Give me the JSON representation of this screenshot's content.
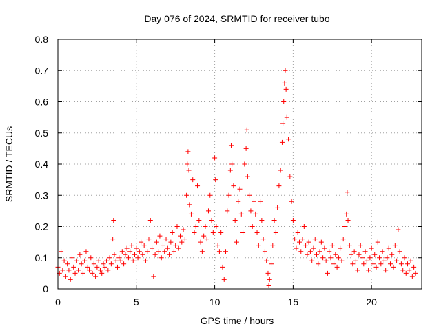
{
  "chart_data": {
    "type": "scatter",
    "title": "Day 076 of 2024, SRMTID for receiver tubo",
    "xlabel": "GPS time / hours",
    "ylabel": "SRMTID / TECUs",
    "xlim": [
      0,
      23.2
    ],
    "ylim": [
      0,
      0.8
    ],
    "xticks": [
      0,
      5,
      10,
      15,
      20
    ],
    "yticks": [
      0,
      0.1,
      0.2,
      0.3,
      0.4,
      0.5,
      0.6,
      0.7,
      0.8
    ],
    "xtick_labels": [
      "0",
      "5",
      "10",
      "15",
      "20"
    ],
    "ytick_labels": [
      "0",
      "0.1",
      "0.2",
      "0.3",
      "0.4",
      "0.5",
      "0.6",
      "0.7",
      "0.8"
    ],
    "grid": true,
    "marker": "plus",
    "color": "#ff0000",
    "series": [
      {
        "name": "SRMTID",
        "points": [
          [
            0.0,
            0.07
          ],
          [
            0.1,
            0.05
          ],
          [
            0.2,
            0.12
          ],
          [
            0.3,
            0.06
          ],
          [
            0.4,
            0.09
          ],
          [
            0.5,
            0.04
          ],
          [
            0.6,
            0.08
          ],
          [
            0.7,
            0.06
          ],
          [
            0.8,
            0.03
          ],
          [
            0.9,
            0.1
          ],
          [
            1.0,
            0.07
          ],
          [
            1.1,
            0.05
          ],
          [
            1.2,
            0.09
          ],
          [
            1.3,
            0.06
          ],
          [
            1.4,
            0.11
          ],
          [
            1.5,
            0.08
          ],
          [
            1.6,
            0.05
          ],
          [
            1.7,
            0.09
          ],
          [
            1.8,
            0.12
          ],
          [
            1.9,
            0.07
          ],
          [
            2.0,
            0.06
          ],
          [
            2.1,
            0.1
          ],
          [
            2.2,
            0.05
          ],
          [
            2.3,
            0.08
          ],
          [
            2.4,
            0.04
          ],
          [
            2.5,
            0.07
          ],
          [
            2.6,
            0.09
          ],
          [
            2.7,
            0.06
          ],
          [
            2.8,
            0.05
          ],
          [
            2.9,
            0.08
          ],
          [
            3.0,
            0.07
          ],
          [
            3.1,
            0.09
          ],
          [
            3.2,
            0.06
          ],
          [
            3.3,
            0.1
          ],
          [
            3.4,
            0.08
          ],
          [
            3.5,
            0.16
          ],
          [
            3.55,
            0.22
          ],
          [
            3.6,
            0.11
          ],
          [
            3.7,
            0.09
          ],
          [
            3.8,
            0.07
          ],
          [
            3.9,
            0.1
          ],
          [
            4.0,
            0.09
          ],
          [
            4.1,
            0.12
          ],
          [
            4.2,
            0.08
          ],
          [
            4.3,
            0.11
          ],
          [
            4.4,
            0.13
          ],
          [
            4.5,
            0.1
          ],
          [
            4.6,
            0.12
          ],
          [
            4.7,
            0.14
          ],
          [
            4.8,
            0.09
          ],
          [
            4.9,
            0.11
          ],
          [
            5.0,
            0.13
          ],
          [
            5.1,
            0.1
          ],
          [
            5.2,
            0.12
          ],
          [
            5.3,
            0.15
          ],
          [
            5.4,
            0.11
          ],
          [
            5.5,
            0.14
          ],
          [
            5.6,
            0.09
          ],
          [
            5.7,
            0.12
          ],
          [
            5.8,
            0.16
          ],
          [
            5.9,
            0.22
          ],
          [
            6.0,
            0.13
          ],
          [
            6.1,
            0.04
          ],
          [
            6.2,
            0.11
          ],
          [
            6.3,
            0.15
          ],
          [
            6.4,
            0.12
          ],
          [
            6.5,
            0.17
          ],
          [
            6.6,
            0.1
          ],
          [
            6.7,
            0.14
          ],
          [
            6.8,
            0.12
          ],
          [
            6.9,
            0.16
          ],
          [
            7.0,
            0.13
          ],
          [
            7.1,
            0.11
          ],
          [
            7.2,
            0.15
          ],
          [
            7.3,
            0.18
          ],
          [
            7.4,
            0.12
          ],
          [
            7.5,
            0.14
          ],
          [
            7.6,
            0.2
          ],
          [
            7.7,
            0.13
          ],
          [
            7.8,
            0.17
          ],
          [
            7.9,
            0.15
          ],
          [
            8.0,
            0.19
          ],
          [
            8.1,
            0.16
          ],
          [
            8.2,
            0.3
          ],
          [
            8.25,
            0.4
          ],
          [
            8.3,
            0.44
          ],
          [
            8.35,
            0.38
          ],
          [
            8.4,
            0.27
          ],
          [
            8.5,
            0.24
          ],
          [
            8.6,
            0.35
          ],
          [
            8.7,
            0.18
          ],
          [
            8.8,
            0.2
          ],
          [
            8.9,
            0.33
          ],
          [
            9.0,
            0.22
          ],
          [
            9.1,
            0.15
          ],
          [
            9.2,
            0.12
          ],
          [
            9.3,
            0.17
          ],
          [
            9.4,
            0.2
          ],
          [
            9.5,
            0.16
          ],
          [
            9.6,
            0.25
          ],
          [
            9.7,
            0.3
          ],
          [
            9.8,
            0.22
          ],
          [
            9.9,
            0.18
          ],
          [
            10.0,
            0.42
          ],
          [
            10.05,
            0.35
          ],
          [
            10.1,
            0.2
          ],
          [
            10.2,
            0.14
          ],
          [
            10.3,
            0.12
          ],
          [
            10.4,
            0.18
          ],
          [
            10.5,
            0.07
          ],
          [
            10.6,
            0.03
          ],
          [
            10.7,
            0.12
          ],
          [
            10.8,
            0.25
          ],
          [
            10.9,
            0.3
          ],
          [
            11.0,
            0.38
          ],
          [
            11.05,
            0.46
          ],
          [
            11.1,
            0.4
          ],
          [
            11.2,
            0.33
          ],
          [
            11.3,
            0.22
          ],
          [
            11.4,
            0.15
          ],
          [
            11.5,
            0.28
          ],
          [
            11.6,
            0.32
          ],
          [
            11.7,
            0.24
          ],
          [
            11.8,
            0.18
          ],
          [
            11.9,
            0.4
          ],
          [
            12.0,
            0.45
          ],
          [
            12.05,
            0.51
          ],
          [
            12.1,
            0.36
          ],
          [
            12.2,
            0.3
          ],
          [
            12.3,
            0.25
          ],
          [
            12.4,
            0.2
          ],
          [
            12.5,
            0.28
          ],
          [
            12.6,
            0.24
          ],
          [
            12.7,
            0.18
          ],
          [
            12.8,
            0.14
          ],
          [
            12.9,
            0.28
          ],
          [
            13.0,
            0.22
          ],
          [
            13.1,
            0.16
          ],
          [
            13.2,
            0.12
          ],
          [
            13.3,
            0.09
          ],
          [
            13.4,
            0.05
          ],
          [
            13.45,
            0.01
          ],
          [
            13.5,
            0.03
          ],
          [
            13.6,
            0.08
          ],
          [
            13.7,
            0.14
          ],
          [
            13.8,
            0.22
          ],
          [
            13.9,
            0.18
          ],
          [
            14.0,
            0.26
          ],
          [
            14.1,
            0.33
          ],
          [
            14.2,
            0.38
          ],
          [
            14.3,
            0.47
          ],
          [
            14.35,
            0.53
          ],
          [
            14.4,
            0.6
          ],
          [
            14.45,
            0.66
          ],
          [
            14.5,
            0.7
          ],
          [
            14.55,
            0.64
          ],
          [
            14.6,
            0.55
          ],
          [
            14.7,
            0.48
          ],
          [
            14.8,
            0.36
          ],
          [
            14.9,
            0.28
          ],
          [
            15.0,
            0.22
          ],
          [
            15.1,
            0.16
          ],
          [
            15.2,
            0.13
          ],
          [
            15.3,
            0.18
          ],
          [
            15.4,
            0.15
          ],
          [
            15.5,
            0.12
          ],
          [
            15.6,
            0.16
          ],
          [
            15.7,
            0.2
          ],
          [
            15.8,
            0.14
          ],
          [
            15.9,
            0.11
          ],
          [
            16.0,
            0.15
          ],
          [
            16.1,
            0.12
          ],
          [
            16.2,
            0.09
          ],
          [
            16.3,
            0.13
          ],
          [
            16.4,
            0.16
          ],
          [
            16.5,
            0.11
          ],
          [
            16.6,
            0.08
          ],
          [
            16.7,
            0.12
          ],
          [
            16.8,
            0.15
          ],
          [
            16.9,
            0.1
          ],
          [
            17.0,
            0.13
          ],
          [
            17.1,
            0.09
          ],
          [
            17.2,
            0.05
          ],
          [
            17.3,
            0.12
          ],
          [
            17.4,
            0.1
          ],
          [
            17.5,
            0.14
          ],
          [
            17.6,
            0.08
          ],
          [
            17.7,
            0.11
          ],
          [
            17.8,
            0.07
          ],
          [
            17.9,
            0.1
          ],
          [
            18.0,
            0.13
          ],
          [
            18.1,
            0.09
          ],
          [
            18.2,
            0.16
          ],
          [
            18.3,
            0.2
          ],
          [
            18.4,
            0.24
          ],
          [
            18.45,
            0.31
          ],
          [
            18.5,
            0.22
          ],
          [
            18.6,
            0.14
          ],
          [
            18.7,
            0.11
          ],
          [
            18.8,
            0.08
          ],
          [
            18.9,
            0.12
          ],
          [
            19.0,
            0.09
          ],
          [
            19.1,
            0.06
          ],
          [
            19.2,
            0.11
          ],
          [
            19.3,
            0.14
          ],
          [
            19.4,
            0.1
          ],
          [
            19.5,
            0.08
          ],
          [
            19.6,
            0.12
          ],
          [
            19.7,
            0.09
          ],
          [
            19.8,
            0.06
          ],
          [
            19.9,
            0.1
          ],
          [
            20.0,
            0.13
          ],
          [
            20.1,
            0.08
          ],
          [
            20.2,
            0.11
          ],
          [
            20.3,
            0.07
          ],
          [
            20.4,
            0.15
          ],
          [
            20.5,
            0.1
          ],
          [
            20.6,
            0.08
          ],
          [
            20.7,
            0.12
          ],
          [
            20.8,
            0.09
          ],
          [
            20.9,
            0.06
          ],
          [
            21.0,
            0.1
          ],
          [
            21.1,
            0.13
          ],
          [
            21.2,
            0.08
          ],
          [
            21.3,
            0.11
          ],
          [
            21.4,
            0.07
          ],
          [
            21.5,
            0.14
          ],
          [
            21.6,
            0.09
          ],
          [
            21.7,
            0.19
          ],
          [
            21.8,
            0.12
          ],
          [
            21.9,
            0.08
          ],
          [
            22.0,
            0.06
          ],
          [
            22.1,
            0.1
          ],
          [
            22.2,
            0.05
          ],
          [
            22.3,
            0.08
          ],
          [
            22.4,
            0.06
          ],
          [
            22.5,
            0.09
          ],
          [
            22.6,
            0.04
          ],
          [
            22.7,
            0.07
          ],
          [
            22.8,
            0.05
          ]
        ]
      }
    ]
  }
}
